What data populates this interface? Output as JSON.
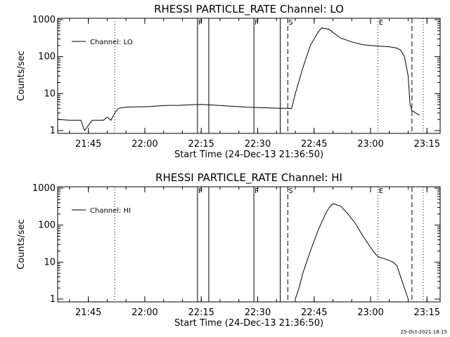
{
  "footer": {
    "timestamp": "25-Oct-2021 18:15"
  },
  "chart_data": [
    {
      "type": "line",
      "title": "RHESSI PARTICLE_RATE Channel: LO",
      "xlabel": "Start Time (24-Dec-13 21:36:50)",
      "ylabel": "Counts/sec",
      "yscale": "log",
      "ylim": [
        1,
        1000
      ],
      "yticks": [
        "1",
        "10",
        "100",
        "1000"
      ],
      "xlim": [
        "21:36:50",
        "23:18:30"
      ],
      "xticks": [
        "21:45",
        "22:00",
        "22:15",
        "22:30",
        "22:45",
        "23:00",
        "23:15"
      ],
      "legend": {
        "position": "top-left",
        "entries": [
          "Channel: LO"
        ]
      },
      "markers": [
        {
          "label": "P",
          "time": "22:14",
          "style": "solid"
        },
        {
          "label": "",
          "time": "22:17",
          "style": "solid"
        },
        {
          "label": "F",
          "time": "22:29",
          "style": "solid"
        },
        {
          "label": "",
          "time": "22:36",
          "style": "solid"
        },
        {
          "label": "S",
          "time": "22:38",
          "style": "dashed"
        },
        {
          "label": "E",
          "time": "23:02",
          "style": "dotted"
        },
        {
          "label": "",
          "time": "23:11",
          "style": "dashed"
        },
        {
          "label": "",
          "time": "23:14",
          "style": "dotted"
        },
        {
          "label": "",
          "time": "21:52",
          "style": "dotted"
        }
      ],
      "series": [
        {
          "name": "Channel: LO",
          "x": [
            "21:36:50",
            "21:40",
            "21:43",
            "21:44",
            "21:46",
            "21:49",
            "21:50",
            "21:51",
            "21:52",
            "21:53",
            "21:55",
            "21:58",
            "22:00",
            "22:03",
            "22:06",
            "22:09",
            "22:12",
            "22:15",
            "22:18",
            "22:21",
            "22:24",
            "22:27",
            "22:30",
            "22:33",
            "22:36",
            "22:38",
            "22:39",
            "22:40",
            "22:42",
            "22:44",
            "22:46",
            "22:47",
            "22:49",
            "22:50",
            "22:52",
            "22:55",
            "22:58",
            "23:00",
            "23:03",
            "23:05",
            "23:07",
            "23:08",
            "23:09",
            "23:10",
            "23:10:30",
            "23:11",
            "23:12",
            "23:13"
          ],
          "values": [
            2.0,
            1.9,
            1.9,
            1.0,
            1.9,
            1.9,
            2.3,
            1.9,
            3.0,
            4.0,
            4.3,
            4.4,
            4.4,
            4.6,
            4.8,
            4.8,
            5.0,
            5.1,
            4.9,
            4.7,
            4.5,
            4.3,
            4.2,
            4.1,
            4.0,
            4.0,
            3.9,
            10,
            50,
            200,
            450,
            600,
            550,
            450,
            320,
            250,
            210,
            200,
            190,
            185,
            170,
            150,
            100,
            30,
            5,
            3.5,
            3.0,
            2.6
          ]
        }
      ]
    },
    {
      "type": "line",
      "title": "RHESSI PARTICLE_RATE Channel: HI",
      "xlabel": "Start Time (24-Dec-13 21:36:50)",
      "ylabel": "Counts/sec",
      "yscale": "log",
      "ylim": [
        1,
        1000
      ],
      "yticks": [
        "1",
        "10",
        "100",
        "1000"
      ],
      "xlim": [
        "21:36:50",
        "23:18:30"
      ],
      "xticks": [
        "21:45",
        "22:00",
        "22:15",
        "22:30",
        "22:45",
        "23:00",
        "23:15"
      ],
      "legend": {
        "position": "top-left",
        "entries": [
          "Channel: HI"
        ]
      },
      "markers": [
        {
          "label": "P",
          "time": "22:14",
          "style": "solid"
        },
        {
          "label": "",
          "time": "22:17",
          "style": "solid"
        },
        {
          "label": "F",
          "time": "22:29",
          "style": "solid"
        },
        {
          "label": "",
          "time": "22:36",
          "style": "solid"
        },
        {
          "label": "S",
          "time": "22:38",
          "style": "dashed"
        },
        {
          "label": "E",
          "time": "23:02",
          "style": "dotted"
        },
        {
          "label": "",
          "time": "23:11",
          "style": "dashed"
        },
        {
          "label": "",
          "time": "23:14",
          "style": "dotted"
        },
        {
          "label": "",
          "time": "21:52",
          "style": "dotted"
        }
      ],
      "series": [
        {
          "name": "Channel: HI",
          "x": [
            "22:40",
            "22:41",
            "22:42",
            "22:44",
            "22:46",
            "22:48",
            "22:49",
            "22:50",
            "22:52",
            "22:54",
            "22:56",
            "22:58",
            "23:00",
            "23:01",
            "23:02",
            "23:04",
            "23:05",
            "23:06",
            "23:07",
            "23:08",
            "23:09",
            "23:10"
          ],
          "values": [
            1.0,
            2.0,
            5,
            20,
            70,
            200,
            300,
            380,
            330,
            200,
            110,
            50,
            25,
            18,
            14,
            12,
            11,
            10,
            8,
            4,
            2,
            1.0
          ]
        }
      ]
    }
  ]
}
